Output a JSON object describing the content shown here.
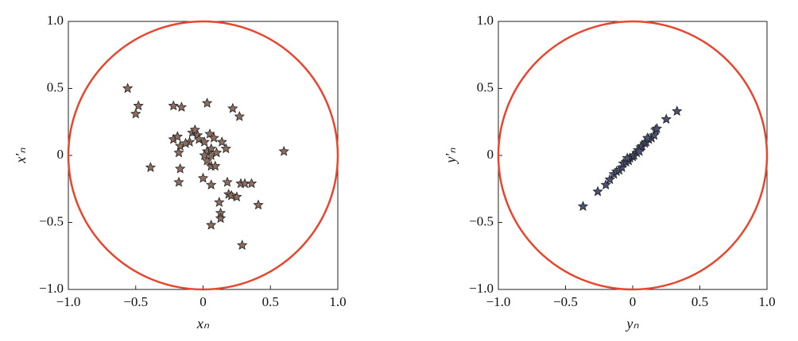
{
  "chart_data": [
    {
      "type": "scatter",
      "xlabel": "xₙ",
      "ylabel": "x′ₙ",
      "xlim": [
        -1,
        1
      ],
      "ylim": [
        -1,
        1
      ],
      "xticks": [
        {
          "value": -1,
          "label": "−1.0"
        },
        {
          "value": -0.5,
          "label": "−0.5"
        },
        0,
        0.5,
        {
          "value": 1,
          "label": "1.0"
        }
      ],
      "yticks": [
        {
          "value": -1,
          "label": "−1.0"
        },
        {
          "value": -0.5,
          "label": "−0.5"
        },
        0,
        0.5,
        {
          "value": 1,
          "label": "1.0"
        }
      ],
      "circle_color": "#e8452c",
      "series": [
        {
          "color": "#8c6d5e",
          "x": [
            -0.56,
            -0.48,
            -0.5,
            -0.22,
            -0.16,
            0.03,
            0.22,
            0.27,
            -0.39,
            0.6,
            -0.22,
            -0.19,
            -0.17,
            -0.1,
            -0.08,
            -0.06,
            -0.04,
            -0.13,
            -0.03,
            0.05,
            0.08,
            0.03,
            0.06,
            0.01,
            -0.18,
            0.14,
            0.17,
            0.06,
            0.1,
            0.06,
            0.09,
            -0.17,
            -0.18,
            0.0,
            0.06,
            0.18,
            0.19,
            0.21,
            0.28,
            0.31,
            0.36,
            0.41,
            0.25,
            0.12,
            0.13,
            0.13,
            0.06,
            0.29,
            0.01,
            0.03
          ],
          "values": [
            0.5,
            0.37,
            0.31,
            0.37,
            0.36,
            0.39,
            0.35,
            0.29,
            -0.09,
            0.03,
            0.12,
            0.14,
            0.07,
            0.1,
            0.17,
            0.19,
            0.15,
            0.09,
            0.12,
            0.16,
            0.13,
            0.03,
            0.05,
            0.1,
            0.02,
            0.1,
            0.05,
            0.0,
            0.02,
            -0.08,
            -0.08,
            -0.1,
            -0.2,
            -0.17,
            -0.22,
            -0.2,
            -0.29,
            -0.3,
            -0.21,
            -0.21,
            -0.21,
            -0.37,
            -0.31,
            -0.35,
            -0.43,
            -0.47,
            -0.52,
            -0.67,
            0.0,
            -0.04
          ]
        }
      ]
    },
    {
      "type": "scatter",
      "xlabel": "yₙ",
      "ylabel": "y′ₙ",
      "xlim": [
        -1,
        1
      ],
      "ylim": [
        -1,
        1
      ],
      "xticks": [
        {
          "value": -1,
          "label": "−1.0"
        },
        {
          "value": -0.5,
          "label": "−0.5"
        },
        0,
        0.5,
        {
          "value": 1,
          "label": "1.0"
        }
      ],
      "yticks": [
        {
          "value": -1,
          "label": "−1.0"
        },
        {
          "value": -0.5,
          "label": "−0.5"
        },
        0,
        0.5,
        {
          "value": 1,
          "label": "1.0"
        }
      ],
      "circle_color": "#e8452c",
      "series": [
        {
          "color": "#4b5275",
          "x": [
            -0.37,
            -0.26,
            -0.2,
            -0.17,
            -0.14,
            -0.12,
            -0.1,
            -0.08,
            -0.07,
            -0.05,
            -0.03,
            -0.02,
            0.0,
            0.01,
            0.03,
            0.04,
            0.06,
            0.07,
            0.09,
            0.1,
            0.12,
            0.14,
            0.16,
            0.17,
            0.18,
            0.25,
            0.33,
            -0.04,
            0.05,
            0.11
          ],
          "values": [
            -0.38,
            -0.27,
            -0.22,
            -0.18,
            -0.14,
            -0.12,
            -0.11,
            -0.09,
            -0.06,
            -0.05,
            -0.04,
            -0.02,
            -0.01,
            0.0,
            0.02,
            0.04,
            0.06,
            0.07,
            0.09,
            0.1,
            0.12,
            0.13,
            0.15,
            0.19,
            0.2,
            0.27,
            0.33,
            -0.02,
            0.03,
            0.13
          ]
        }
      ]
    }
  ]
}
